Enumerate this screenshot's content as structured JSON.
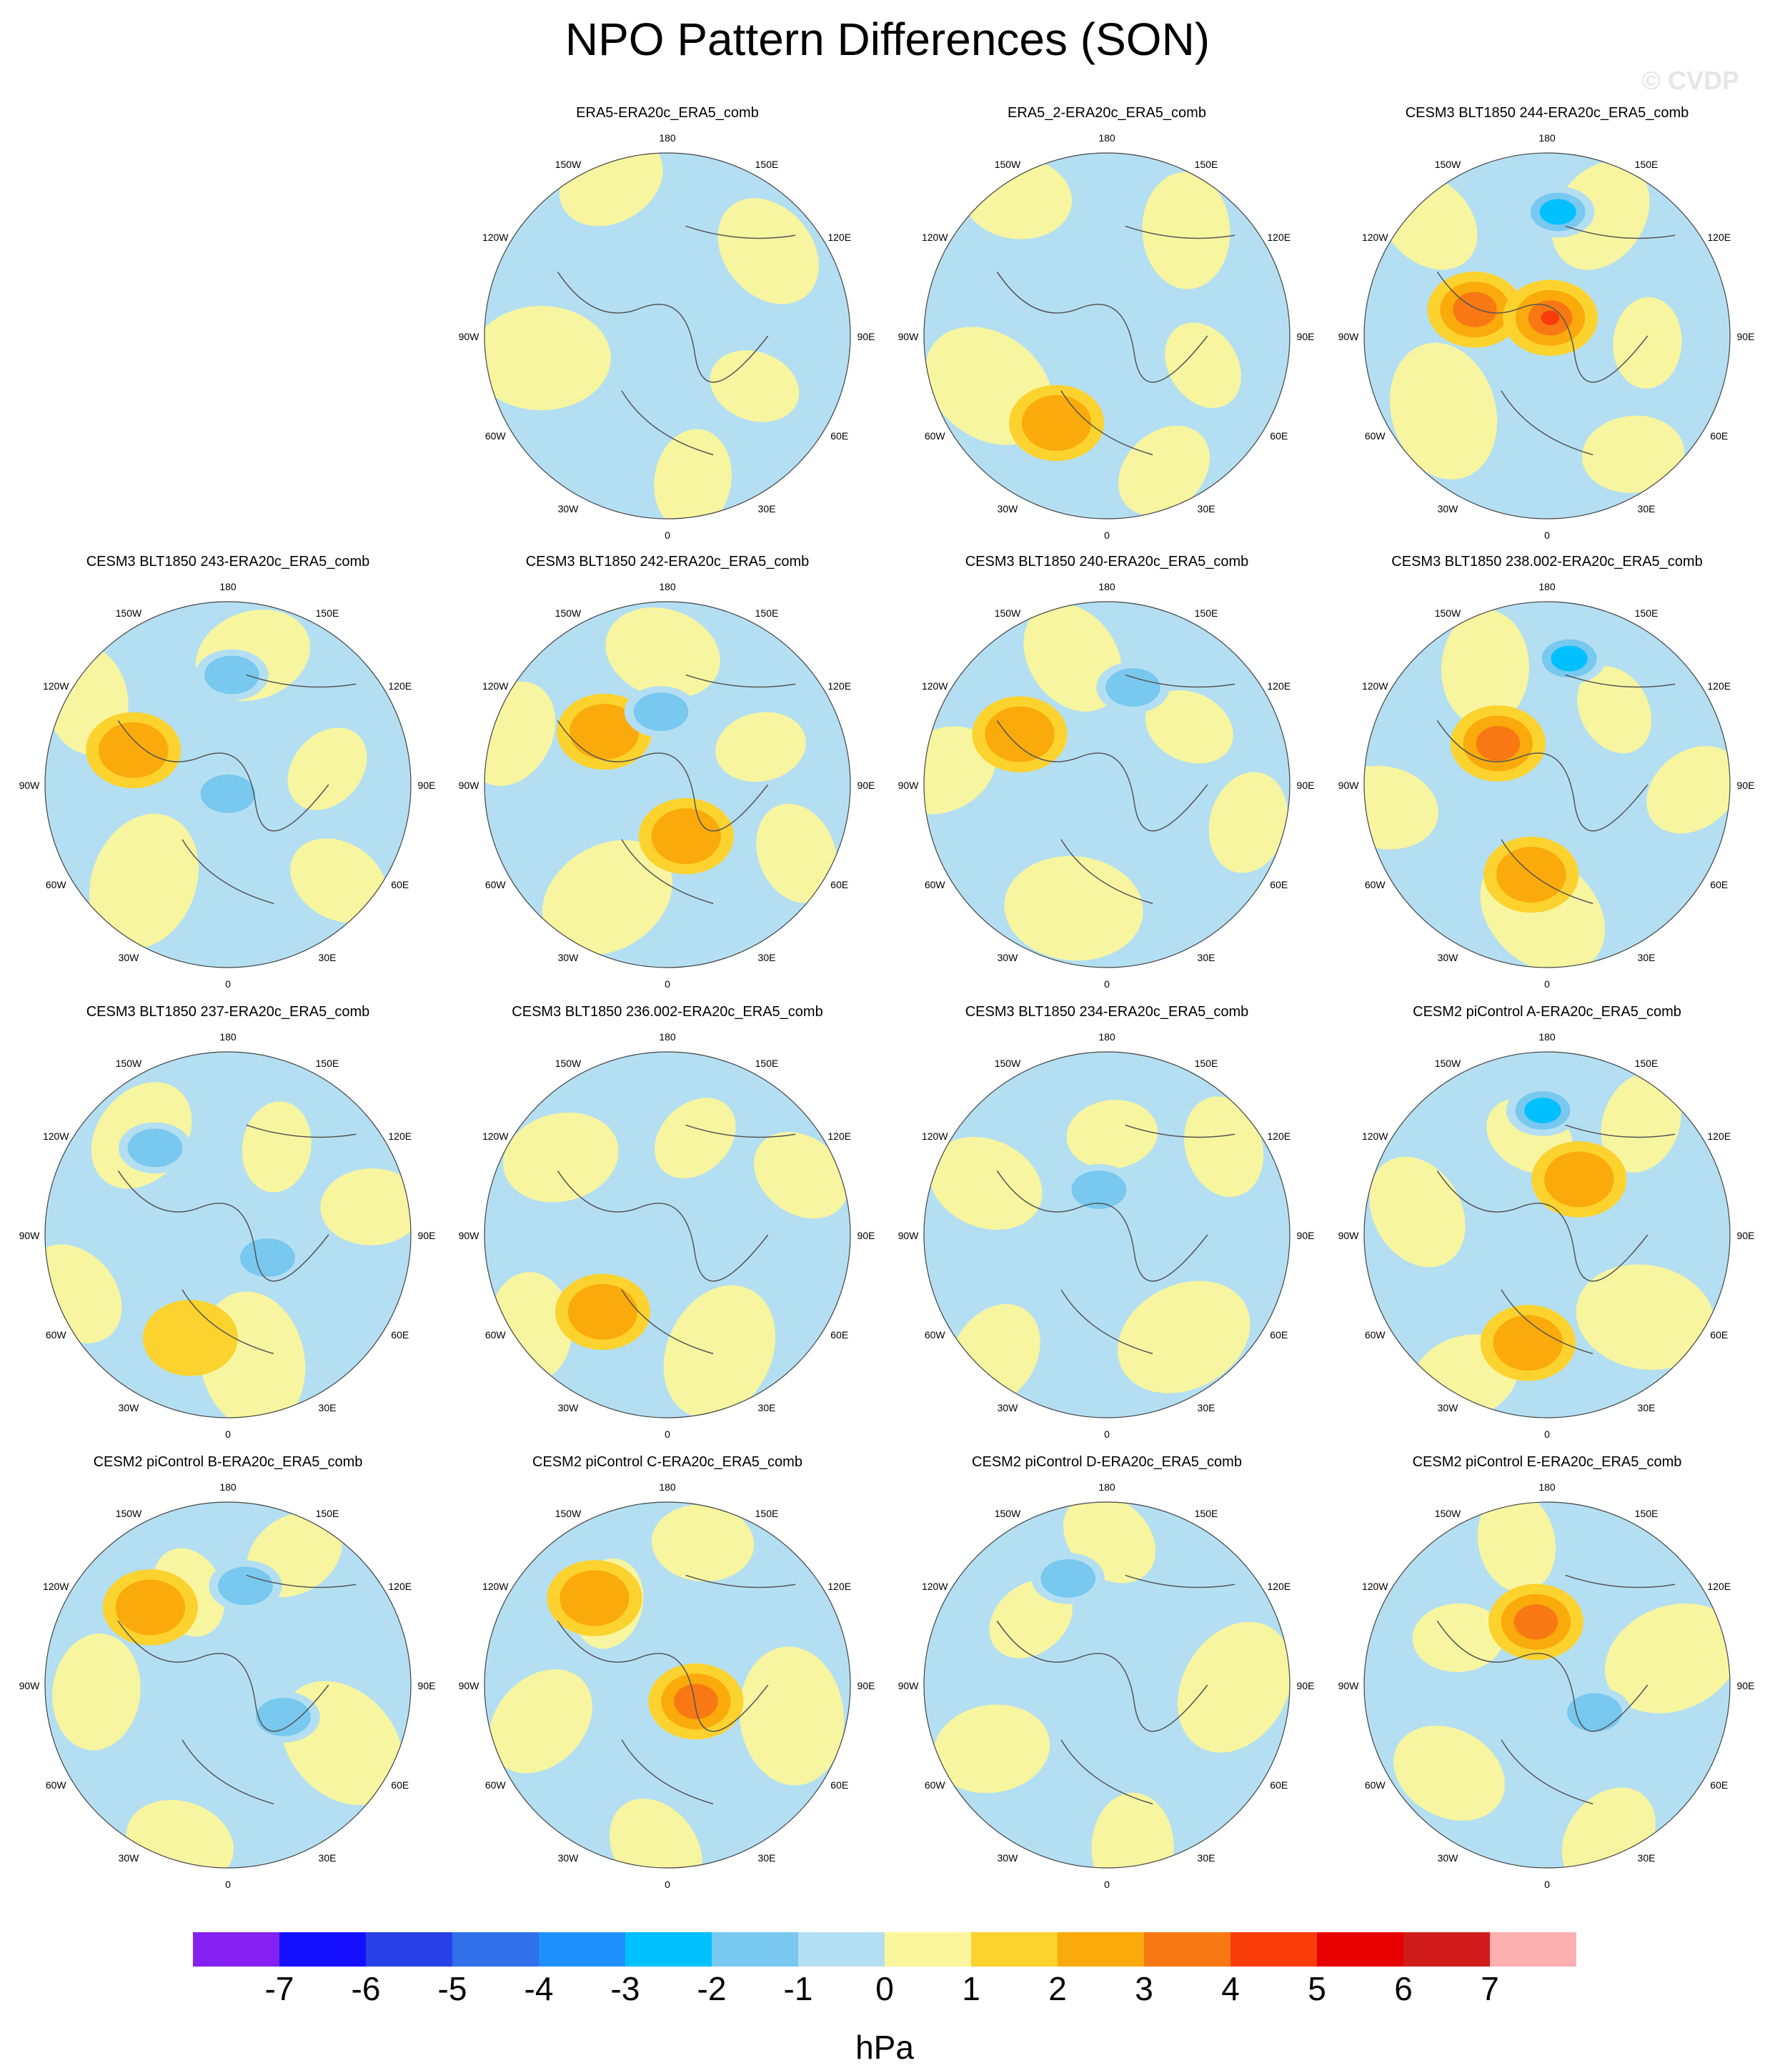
{
  "title": "NPO Pattern Differences (SON)",
  "watermark": "© CVDP",
  "longitude_labels": [
    "180",
    "150E",
    "120E",
    "90E",
    "60E",
    "30E",
    "0",
    "30W",
    "60W",
    "90W",
    "120W",
    "150W"
  ],
  "panels": [
    {
      "name": "ERA5-ERA20c_ERA5_comb",
      "highs": [],
      "lows": [],
      "yellow": "mixed"
    },
    {
      "name": "ERA5_2-ERA20c_ERA5_comb",
      "highs": [
        {
          "lon": -30,
          "r": 0.55,
          "level": 2
        }
      ],
      "lows": [],
      "yellow": "mixed"
    },
    {
      "name": "CESM3 BLT1850 244-ERA20c_ERA5_comb",
      "highs": [
        {
          "lon": -110,
          "r": 0.42,
          "level": 3
        },
        {
          "lon": 170,
          "r": 0.1,
          "level": 4
        }
      ],
      "lows": [
        {
          "lon": 175,
          "r": 0.68,
          "level": -3
        }
      ],
      "yellow": "strong"
    },
    {
      "name": "CESM3 BLT1850 243-ERA20c_ERA5_comb",
      "highs": [
        {
          "lon": -110,
          "r": 0.55,
          "level": 2
        }
      ],
      "lows": [
        {
          "lon": 178,
          "r": 0.6,
          "level": -2
        },
        {
          "lon": 0,
          "r": 0.05,
          "level": -2
        }
      ],
      "yellow": "mixed"
    },
    {
      "name": "CESM3 BLT1850 242-ERA20c_ERA5_comb",
      "highs": [
        {
          "lon": -130,
          "r": 0.45,
          "level": 2
        },
        {
          "lon": 20,
          "r": 0.3,
          "level": 2
        }
      ],
      "lows": [
        {
          "lon": -175,
          "r": 0.4,
          "level": -2
        }
      ],
      "yellow": "mixed"
    },
    {
      "name": "CESM3 BLT1850 240-ERA20c_ERA5_comb",
      "highs": [
        {
          "lon": -120,
          "r": 0.55,
          "level": 2
        }
      ],
      "lows": [
        {
          "lon": 165,
          "r": 0.55,
          "level": -2
        }
      ],
      "yellow": "mixed"
    },
    {
      "name": "CESM3 BLT1850 238.002-ERA20c_ERA5_comb",
      "highs": [
        {
          "lon": -130,
          "r": 0.35,
          "level": 3
        },
        {
          "lon": -10,
          "r": 0.5,
          "level": 2
        }
      ],
      "lows": [
        {
          "lon": 170,
          "r": 0.7,
          "level": -3
        }
      ],
      "yellow": "strong"
    },
    {
      "name": "CESM3 BLT1850 237-ERA20c_ERA5_comb",
      "highs": [
        {
          "lon": -20,
          "r": 0.6,
          "level": 1
        }
      ],
      "lows": [
        {
          "lon": -140,
          "r": 0.62,
          "level": -2
        },
        {
          "lon": 60,
          "r": 0.25,
          "level": -2
        }
      ],
      "yellow": "mixed"
    },
    {
      "name": "CESM3 BLT1850 236.002-ERA20c_ERA5_comb",
      "highs": [
        {
          "lon": -40,
          "r": 0.55,
          "level": 2
        }
      ],
      "lows": [],
      "yellow": "mixed"
    },
    {
      "name": "CESM3 BLT1850 234-ERA20c_ERA5_comb",
      "highs": [],
      "lows": [
        {
          "lon": -170,
          "r": 0.25,
          "level": -2
        }
      ],
      "yellow": "mixed"
    },
    {
      "name": "CESM2 piControl A-ERA20c_ERA5_comb",
      "highs": [
        {
          "lon": -10,
          "r": 0.6,
          "level": 2
        },
        {
          "lon": 150,
          "r": 0.35,
          "level": 2
        }
      ],
      "lows": [
        {
          "lon": -178,
          "r": 0.68,
          "level": -3
        }
      ],
      "yellow": "mixed"
    },
    {
      "name": "CESM2 piControl B-ERA20c_ERA5_comb",
      "highs": [
        {
          "lon": -135,
          "r": 0.6,
          "level": 2
        }
      ],
      "lows": [
        {
          "lon": 170,
          "r": 0.55,
          "level": -2
        },
        {
          "lon": 60,
          "r": 0.35,
          "level": -2
        }
      ],
      "yellow": "mixed"
    },
    {
      "name": "CESM2 piControl C-ERA20c_ERA5_comb",
      "highs": [
        {
          "lon": -140,
          "r": 0.62,
          "level": 2
        },
        {
          "lon": 60,
          "r": 0.18,
          "level": 3
        }
      ],
      "lows": [],
      "yellow": "strong"
    },
    {
      "name": "CESM2 piControl D-ERA20c_ERA5_comb",
      "highs": [],
      "lows": [
        {
          "lon": -160,
          "r": 0.62,
          "level": -2
        }
      ],
      "yellow": "mixed"
    },
    {
      "name": "CESM2 piControl E-ERA20c_ERA5_comb",
      "highs": [
        {
          "lon": -170,
          "r": 0.35,
          "level": 3
        }
      ],
      "lows": [
        {
          "lon": 60,
          "r": 0.3,
          "level": -2
        }
      ],
      "yellow": "mixed"
    }
  ],
  "colorbar": {
    "colors": [
      "#8420f0",
      "#1410ff",
      "#2840e8",
      "#3070e8",
      "#2090ff",
      "#00c0ff",
      "#78c8f0",
      "#b4dff2",
      "#fbf59b",
      "#fcd22e",
      "#faaa0a",
      "#f87814",
      "#fa3c0a",
      "#e60000",
      "#d21c1c",
      "#fcb0b0"
    ],
    "ticks": [
      "-7",
      "-6",
      "-5",
      "-4",
      "-3",
      "-2",
      "-1",
      "0",
      "1",
      "2",
      "3",
      "4",
      "5",
      "6",
      "7"
    ],
    "unit": "hPa"
  }
}
